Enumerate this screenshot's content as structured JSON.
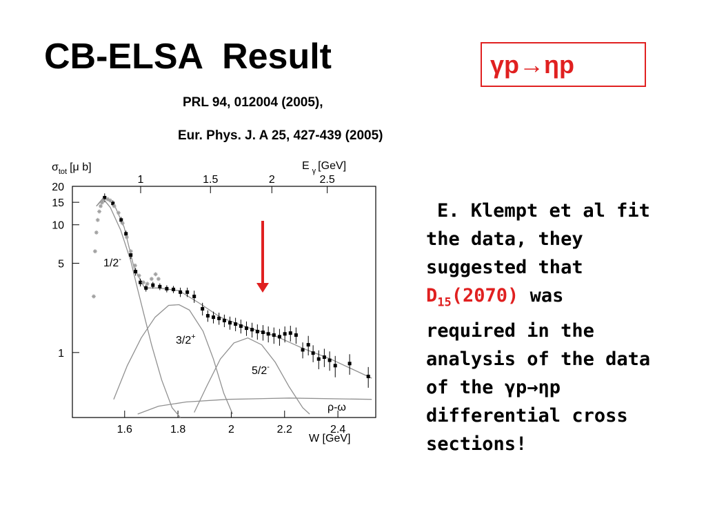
{
  "title": "CB-ELSA  Result",
  "reaction": "γp→ηp",
  "references": [
    "PRL 94, 012004 (2005),",
    "Eur. Phys. J. A 25, 427-439 (2005)"
  ],
  "body": {
    "before": "E. Klempt et al fit the data, they suggested that",
    "highlight": "D",
    "highlight_sub": "15",
    "highlight_after": "(2070)",
    "after": "was required in the analysis of the data of the γp→ηp differential cross sections!"
  },
  "chart_data": {
    "type": "scatter",
    "y_label": {
      "text": "σ",
      "sub": "tot",
      "unit": "[μ b]"
    },
    "x_label": "W [GeV]",
    "x2_label": {
      "text": "E",
      "sub": "γ",
      "unit": "[GeV]"
    },
    "xlim": [
      1.404,
      2.542
    ],
    "xticks": [
      1.6,
      1.8,
      2,
      2.2,
      2.4
    ],
    "x2ticks": [
      1,
      1.5,
      2,
      2.5
    ],
    "ylim": [
      0.31,
      20
    ],
    "yticks": [
      1,
      5,
      10,
      15,
      20
    ],
    "log_y": true,
    "datasets": [
      {
        "color": "#000000",
        "x": [
          1.525,
          1.556,
          1.587,
          1.605,
          1.623,
          1.641,
          1.659,
          1.68,
          1.706,
          1.732,
          1.758,
          1.783,
          1.809,
          1.835,
          1.861,
          1.892,
          1.912,
          1.933,
          1.954,
          1.974,
          1.995,
          2.016,
          2.036,
          2.057,
          2.078,
          2.098,
          2.119,
          2.139,
          2.16,
          2.181,
          2.201,
          2.222,
          2.243,
          2.268,
          2.289,
          2.307,
          2.328,
          2.349,
          2.369,
          2.39,
          2.444,
          2.514
        ],
        "values": [
          16.3,
          14.7,
          10.9,
          8.5,
          5.8,
          4.3,
          3.54,
          3.2,
          3.37,
          3.28,
          3.16,
          3.12,
          2.97,
          2.97,
          2.75,
          2.2,
          1.94,
          1.89,
          1.85,
          1.78,
          1.71,
          1.67,
          1.61,
          1.55,
          1.51,
          1.46,
          1.44,
          1.4,
          1.37,
          1.33,
          1.4,
          1.42,
          1.37,
          1.05,
          1.15,
          0.99,
          0.89,
          0.92,
          0.87,
          0.79,
          0.82,
          0.65
        ],
        "errors": [
          1.3,
          0.8,
          0.6,
          0.5,
          0.4,
          0.3,
          0.25,
          0.2,
          0.2,
          0.2,
          0.2,
          0.2,
          0.25,
          0.25,
          0.3,
          0.25,
          0.2,
          0.2,
          0.2,
          0.2,
          0.2,
          0.2,
          0.2,
          0.2,
          0.2,
          0.2,
          0.2,
          0.2,
          0.2,
          0.2,
          0.2,
          0.2,
          0.2,
          0.15,
          0.2,
          0.15,
          0.15,
          0.15,
          0.15,
          0.15,
          0.15,
          0.12
        ]
      },
      {
        "color": "#a0a0a0",
        "x": [
          1.484,
          1.489,
          1.494,
          1.499,
          1.505,
          1.51,
          1.515,
          1.52,
          1.536,
          1.546,
          1.561,
          1.577,
          1.592,
          1.608,
          1.623,
          1.639,
          1.654,
          1.67,
          1.685,
          1.701,
          1.716,
          1.727
        ],
        "values": [
          2.75,
          6.2,
          8.7,
          10.9,
          12.7,
          14.0,
          14.9,
          15.5,
          15.9,
          15.5,
          14.0,
          12.4,
          10.3,
          8.0,
          6.2,
          4.8,
          4.0,
          3.54,
          3.45,
          3.77,
          4.1,
          3.77
        ]
      }
    ],
    "curves": [
      {
        "color": "#909090",
        "x": [
          1.494,
          1.52,
          1.559,
          1.598,
          1.636,
          1.675,
          1.727,
          1.804,
          1.881,
          1.959,
          2.062,
          2.165,
          2.268,
          2.372,
          2.527
        ],
        "values": [
          14.0,
          16.3,
          14.7,
          9.6,
          4.55,
          3.2,
          3.2,
          3.05,
          2.43,
          1.89,
          1.57,
          1.35,
          1.08,
          0.89,
          0.63
        ]
      },
      {
        "color": "#909090",
        "label": {
          "text": "1/2",
          "sup": "-"
        },
        "x": [
          1.494,
          1.52,
          1.546,
          1.585,
          1.623,
          1.649,
          1.675,
          1.701,
          1.739,
          1.778,
          1.809
        ],
        "values": [
          14.0,
          15.9,
          13.7,
          9.1,
          5.2,
          3.12,
          1.89,
          1.15,
          0.61,
          0.37,
          0.31
        ]
      },
      {
        "color": "#909090",
        "label": {
          "text": "3/2",
          "sup": "+"
        },
        "x": [
          1.559,
          1.61,
          1.662,
          1.714,
          1.765,
          1.804,
          1.843,
          1.894,
          1.933,
          1.972,
          2.005
        ],
        "values": [
          0.43,
          0.79,
          1.3,
          1.89,
          2.34,
          2.37,
          2.15,
          1.47,
          0.89,
          0.48,
          0.33
        ]
      },
      {
        "color": "#909090",
        "label": {
          "text": "5/2",
          "sup": "-"
        },
        "x": [
          1.861,
          1.907,
          1.959,
          2.01,
          2.062,
          2.114,
          2.165,
          2.217,
          2.268,
          2.294
        ],
        "values": [
          0.34,
          0.54,
          0.89,
          1.19,
          1.3,
          1.15,
          0.84,
          0.54,
          0.37,
          0.33
        ]
      },
      {
        "color": "#909090",
        "label": {
          "text": "ρ-ω"
        },
        "x": [
          1.649,
          1.727,
          1.83,
          1.985,
          2.217,
          2.527
        ],
        "values": [
          0.33,
          0.38,
          0.41,
          0.43,
          0.44,
          0.43
        ]
      }
    ]
  }
}
